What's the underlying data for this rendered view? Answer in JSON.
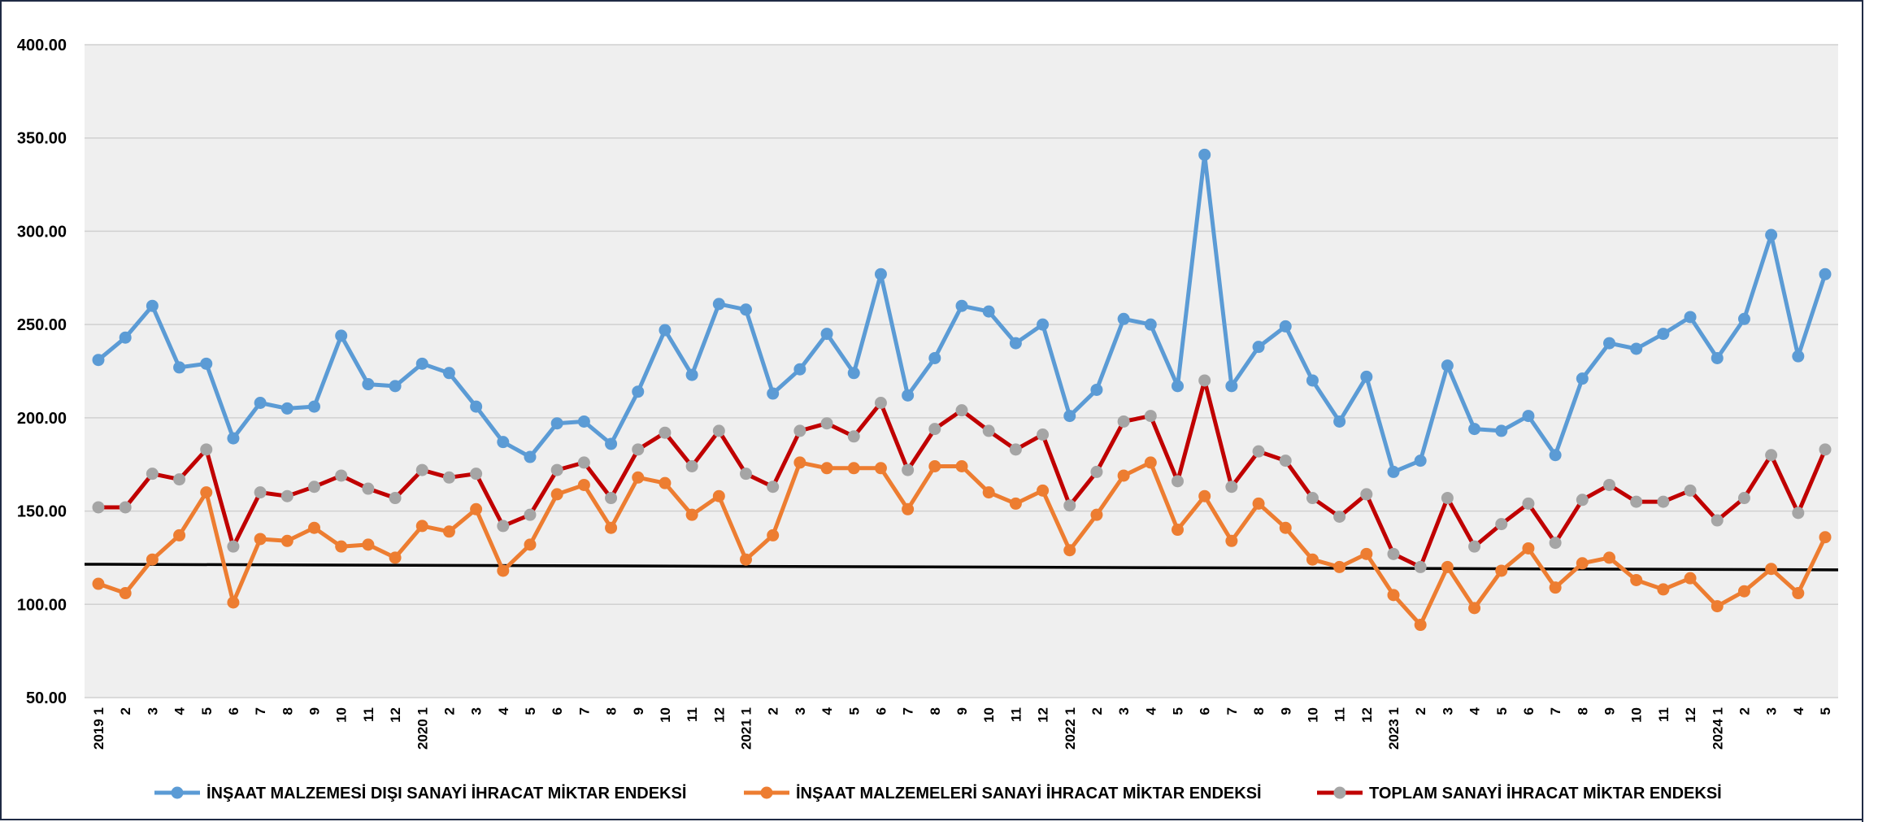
{
  "chart_data": {
    "type": "line",
    "title": "",
    "xlabel": "",
    "ylabel": "",
    "ylim": [
      50,
      400
    ],
    "yticks": [
      "400.00",
      "350.00",
      "300.00",
      "250.00",
      "200.00",
      "150.00",
      "100.00",
      "50.00"
    ],
    "ytick_values": [
      400,
      350,
      300,
      250,
      200,
      150,
      100,
      50
    ],
    "grid": true,
    "legend_position": "bottom",
    "x_labels": [
      "2019 1",
      "2",
      "3",
      "4",
      "5",
      "6",
      "7",
      "8",
      "9",
      "10",
      "11",
      "12",
      "2020 1",
      "2",
      "3",
      "4",
      "5",
      "6",
      "7",
      "8",
      "9",
      "10",
      "11",
      "12",
      "2021 1",
      "2",
      "3",
      "4",
      "5",
      "6",
      "7",
      "8",
      "9",
      "10",
      "11",
      "12",
      "2022 1",
      "2",
      "3",
      "4",
      "5",
      "6",
      "7",
      "8",
      "9",
      "10",
      "11",
      "12",
      "2023 1",
      "2",
      "3",
      "4",
      "5",
      "6",
      "7",
      "8",
      "9",
      "10",
      "11",
      "12",
      "2024 1",
      "2",
      "3",
      "4",
      "5"
    ],
    "series": [
      {
        "name": "İNŞAAT MALZEMESİ DIŞI SANAYİ İHRACAT MİKTAR ENDEKSİ",
        "color": "#5b9bd5",
        "marker_color": "#5b9bd5",
        "values": [
          231,
          243,
          260,
          227,
          229,
          189,
          208,
          205,
          206,
          244,
          218,
          217,
          229,
          224,
          206,
          187,
          179,
          197,
          198,
          186,
          214,
          247,
          223,
          261,
          258,
          213,
          226,
          245,
          224,
          277,
          212,
          232,
          260,
          257,
          240,
          250,
          201,
          215,
          253,
          250,
          217,
          341,
          217,
          238,
          249,
          220,
          198,
          222,
          171,
          177,
          228,
          194,
          193,
          201,
          180,
          221,
          240,
          237,
          245,
          254,
          232,
          253,
          298,
          233,
          277
        ]
      },
      {
        "name": "İNŞAAT MALZEMELERİ SANAYİ İHRACAT MİKTAR ENDEKSİ",
        "color": "#ed7d31",
        "marker_color": "#ed7d31",
        "values": [
          111,
          106,
          124,
          137,
          160,
          101,
          135,
          134,
          141,
          131,
          132,
          125,
          142,
          139,
          151,
          118,
          132,
          159,
          164,
          141,
          168,
          165,
          148,
          158,
          124,
          137,
          176,
          173,
          173,
          173,
          151,
          174,
          174,
          160,
          154,
          161,
          129,
          148,
          169,
          176,
          140,
          158,
          134,
          154,
          141,
          124,
          120,
          127,
          105,
          89,
          120,
          98,
          118,
          130,
          109,
          122,
          125,
          113,
          108,
          114,
          99,
          107,
          119,
          106,
          136
        ]
      },
      {
        "name": "TOPLAM SANAYİ İHRACAT MİKTAR ENDEKSİ",
        "color": "#c00000",
        "marker_color": "#a5a5a5",
        "values": [
          152,
          152,
          170,
          167,
          183,
          131,
          160,
          158,
          163,
          169,
          162,
          157,
          172,
          168,
          170,
          142,
          148,
          172,
          176,
          157,
          183,
          192,
          174,
          193,
          170,
          163,
          193,
          197,
          190,
          208,
          172,
          194,
          204,
          193,
          183,
          191,
          153,
          171,
          198,
          201,
          166,
          220,
          163,
          182,
          177,
          157,
          147,
          159,
          127,
          120,
          157,
          131,
          143,
          154,
          133,
          156,
          164,
          155,
          155,
          161,
          145,
          157,
          180,
          149,
          183
        ]
      }
    ],
    "trendline": {
      "color": "#000000",
      "start_value": 121.5,
      "end_value": 118.5
    }
  }
}
